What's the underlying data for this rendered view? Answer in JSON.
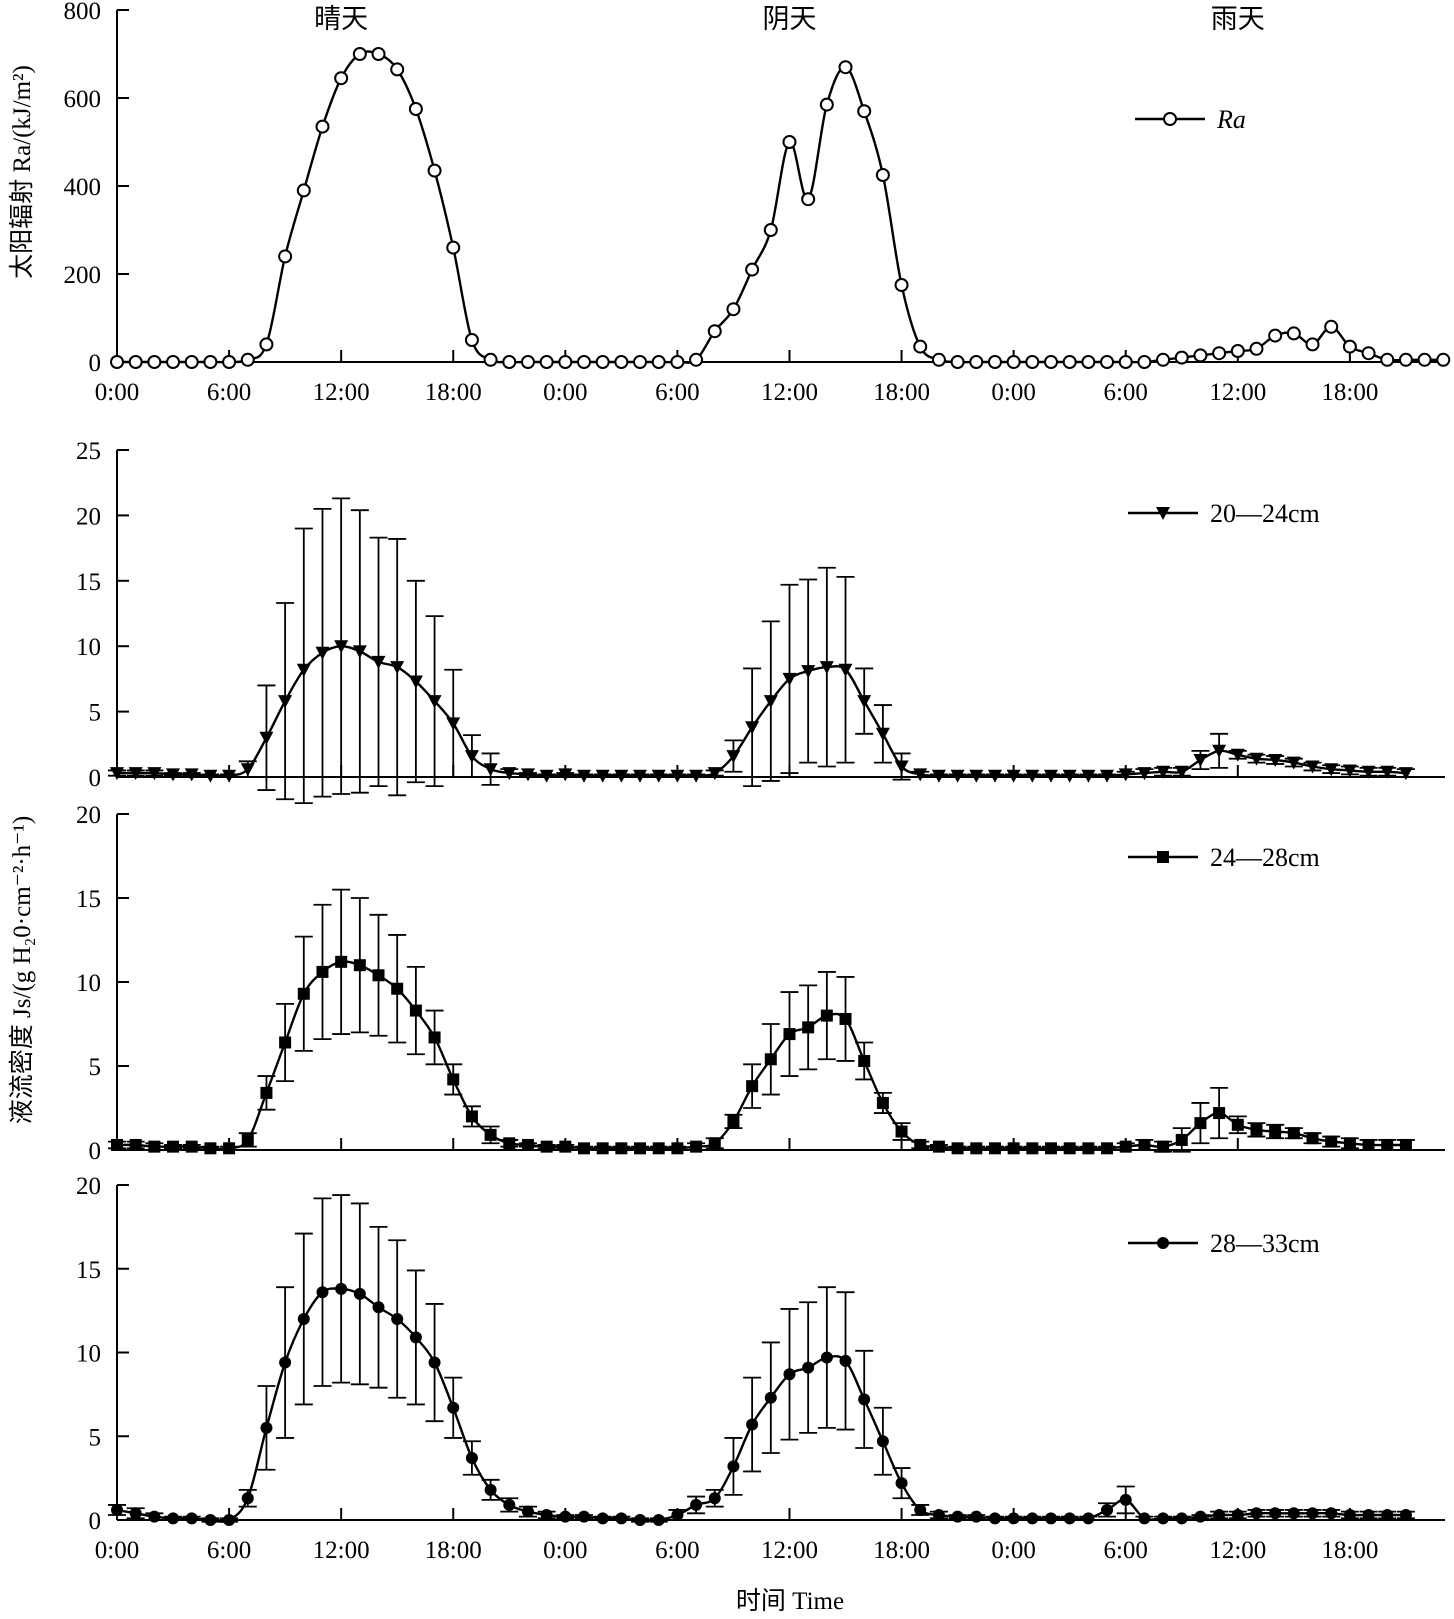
{
  "chart_data": [
    {
      "type": "line",
      "ylabel": "太阳辐射 Ra/(kJ/m²)",
      "ylim": [
        0,
        800
      ],
      "yticks": [
        "0",
        "200",
        "400",
        "600",
        "800"
      ],
      "xticks": [
        "0:00",
        "6:00",
        "12:00",
        "18:00",
        "0:00",
        "6:00",
        "12:00",
        "18:00",
        "0:00",
        "6:00",
        "12:00",
        "18:00"
      ],
      "day_labels": [
        "晴天",
        "阴天",
        "雨天"
      ],
      "legend_position": "top-right",
      "grid": false,
      "x": "hours from 0:00 of the clear day, one point per hour",
      "series": [
        {
          "name": "Ra",
          "marker": "open-circle",
          "values": [
            0,
            0,
            0,
            0,
            0,
            0,
            0,
            5,
            40,
            240,
            390,
            535,
            645,
            700,
            700,
            665,
            575,
            435,
            260,
            50,
            5,
            0,
            0,
            0,
            0,
            0,
            0,
            0,
            0,
            0,
            0,
            5,
            70,
            120,
            210,
            300,
            500,
            370,
            585,
            670,
            570,
            425,
            175,
            35,
            5,
            0,
            0,
            0,
            0,
            0,
            0,
            0,
            0,
            0,
            0,
            0,
            5,
            10,
            15,
            20,
            25,
            30,
            60,
            65,
            40,
            80,
            35,
            20,
            5,
            5,
            5,
            5
          ]
        }
      ]
    },
    {
      "type": "line",
      "ylim": [
        0,
        25
      ],
      "yticks": [
        "0",
        "5",
        "10",
        "15",
        "20",
        "25"
      ],
      "legend_position": "top-right",
      "grid": false,
      "series": [
        {
          "name": "20—24cm",
          "marker": "filled-triangle-down",
          "values": [
            0.3,
            0.3,
            0.3,
            0.2,
            0.2,
            0.1,
            0.1,
            0.6,
            3.0,
            5.8,
            8.2,
            9.5,
            10.0,
            9.6,
            8.8,
            8.4,
            7.3,
            5.8,
            4.1,
            1.6,
            0.6,
            0.3,
            0.2,
            0.1,
            0.2,
            0.1,
            0.1,
            0.1,
            0.1,
            0.1,
            0.1,
            0.1,
            0.3,
            1.6,
            3.8,
            5.8,
            7.5,
            8.1,
            8.4,
            8.2,
            5.8,
            3.3,
            0.8,
            0.2,
            0.1,
            0.1,
            0.1,
            0.1,
            0.1,
            0.1,
            0.1,
            0.1,
            0.1,
            0.1,
            0.2,
            0.3,
            0.4,
            0.4,
            1.3,
            2.0,
            1.7,
            1.4,
            1.3,
            1.1,
            0.8,
            0.6,
            0.5,
            0.4,
            0.4,
            0.3
          ],
          "error": [
            0.2,
            0.2,
            0.2,
            0.1,
            0.1,
            0.1,
            0.1,
            0.6,
            4.0,
            7.5,
            10.8,
            11.0,
            11.3,
            10.8,
            9.5,
            9.8,
            7.7,
            6.5,
            4.1,
            1.6,
            1.2,
            0.3,
            0.1,
            0.1,
            0.1,
            0.1,
            0.1,
            0.1,
            0.1,
            0.1,
            0.1,
            0.1,
            0.2,
            1.2,
            4.5,
            6.1,
            7.2,
            7.0,
            7.6,
            7.1,
            2.5,
            2.2,
            1.0,
            0.2,
            0.1,
            0.1,
            0.1,
            0.1,
            0.1,
            0.1,
            0.1,
            0.1,
            0.1,
            0.1,
            0.2,
            0.3,
            0.3,
            0.3,
            0.7,
            1.3,
            0.3,
            0.3,
            0.3,
            0.3,
            0.3,
            0.3,
            0.3,
            0.3,
            0.3,
            0.3
          ]
        }
      ]
    },
    {
      "type": "line",
      "ylim": [
        0,
        20
      ],
      "yticks": [
        "0",
        "5",
        "10",
        "15",
        "20"
      ],
      "legend_position": "top-right",
      "grid": false,
      "series": [
        {
          "name": "24—28cm",
          "marker": "filled-square",
          "values": [
            0.3,
            0.3,
            0.2,
            0.2,
            0.2,
            0.1,
            0.1,
            0.6,
            3.4,
            6.4,
            9.3,
            10.6,
            11.2,
            11.0,
            10.4,
            9.6,
            8.3,
            6.7,
            4.2,
            2.0,
            0.9,
            0.4,
            0.3,
            0.2,
            0.2,
            0.1,
            0.1,
            0.1,
            0.1,
            0.1,
            0.1,
            0.2,
            0.4,
            1.7,
            3.8,
            5.4,
            6.9,
            7.3,
            8.0,
            7.8,
            5.3,
            2.8,
            1.1,
            0.3,
            0.2,
            0.1,
            0.1,
            0.1,
            0.1,
            0.1,
            0.1,
            0.1,
            0.1,
            0.1,
            0.2,
            0.3,
            0.2,
            0.6,
            1.6,
            2.2,
            1.5,
            1.2,
            1.1,
            1.0,
            0.7,
            0.5,
            0.4,
            0.3,
            0.3,
            0.3
          ],
          "error": [
            0.2,
            0.2,
            0.2,
            0.1,
            0.1,
            0.1,
            0.1,
            0.4,
            1.0,
            2.3,
            3.4,
            4.0,
            4.3,
            4.0,
            3.6,
            3.2,
            2.6,
            1.6,
            0.9,
            0.6,
            0.5,
            0.2,
            0.1,
            0.1,
            0.1,
            0.1,
            0.1,
            0.1,
            0.1,
            0.1,
            0.1,
            0.2,
            0.3,
            0.4,
            1.3,
            2.1,
            2.5,
            2.5,
            2.6,
            2.5,
            1.1,
            0.6,
            0.5,
            0.2,
            0.1,
            0.1,
            0.1,
            0.1,
            0.1,
            0.1,
            0.1,
            0.1,
            0.1,
            0.1,
            0.2,
            0.3,
            0.3,
            0.7,
            1.2,
            1.5,
            0.5,
            0.4,
            0.4,
            0.3,
            0.3,
            0.3,
            0.3,
            0.3,
            0.3,
            0.3
          ]
        }
      ]
    },
    {
      "type": "line",
      "ylabel": "液流密度 Js/(g H₂0·cm⁻²·h⁻¹)",
      "xlabel": "时间 Time",
      "ylim": [
        0,
        20
      ],
      "yticks": [
        "0",
        "5",
        "10",
        "15",
        "20"
      ],
      "legend_position": "top-right",
      "grid": false,
      "series": [
        {
          "name": "28—33cm",
          "marker": "filled-circle",
          "values": [
            0.6,
            0.4,
            0.2,
            0.1,
            0.1,
            0.0,
            0.0,
            1.3,
            5.5,
            9.4,
            12.0,
            13.6,
            13.8,
            13.5,
            12.7,
            12.0,
            10.9,
            9.4,
            6.7,
            3.7,
            1.8,
            0.9,
            0.5,
            0.3,
            0.2,
            0.2,
            0.1,
            0.1,
            0.0,
            0.0,
            0.3,
            0.9,
            1.3,
            3.2,
            5.7,
            7.3,
            8.7,
            9.1,
            9.7,
            9.5,
            7.2,
            4.7,
            2.2,
            0.6,
            0.3,
            0.2,
            0.2,
            0.1,
            0.1,
            0.1,
            0.1,
            0.1,
            0.1,
            0.6,
            1.2,
            0.1,
            0.1,
            0.1,
            0.2,
            0.3,
            0.3,
            0.4,
            0.4,
            0.4,
            0.4,
            0.4,
            0.3,
            0.3,
            0.3,
            0.3
          ],
          "error": [
            0.3,
            0.3,
            0.2,
            0.1,
            0.1,
            0.1,
            0.1,
            0.5,
            2.5,
            4.5,
            5.1,
            5.6,
            5.6,
            5.4,
            4.8,
            4.7,
            4.0,
            3.5,
            1.8,
            1.0,
            0.6,
            0.4,
            0.3,
            0.2,
            0.1,
            0.1,
            0.1,
            0.1,
            0.1,
            0.1,
            0.3,
            0.5,
            0.5,
            1.7,
            2.8,
            3.3,
            3.9,
            3.9,
            4.2,
            4.1,
            2.9,
            2.0,
            0.9,
            0.3,
            0.2,
            0.1,
            0.1,
            0.1,
            0.1,
            0.1,
            0.1,
            0.1,
            0.1,
            0.4,
            0.8,
            0.1,
            0.1,
            0.1,
            0.1,
            0.2,
            0.2,
            0.2,
            0.2,
            0.2,
            0.2,
            0.2,
            0.2,
            0.2,
            0.2,
            0.2
          ]
        }
      ]
    }
  ]
}
